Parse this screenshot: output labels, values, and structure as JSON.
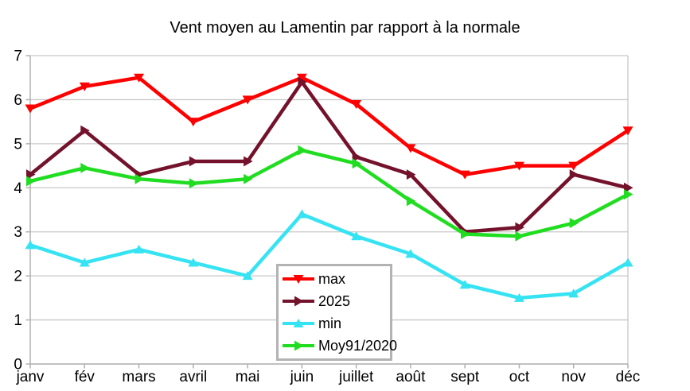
{
  "chart_data": {
    "type": "line",
    "title": "Vent moyen au Lamentin par rapport à la normale",
    "categories": [
      "janv",
      "fév",
      "mars",
      "avril",
      "mai",
      "juin",
      "juillet",
      "août",
      "sept",
      "oct",
      "nov",
      "déc"
    ],
    "series": [
      {
        "name": "max",
        "color": "#ff0000",
        "marker": "triangle-down",
        "values": [
          5.8,
          6.3,
          6.5,
          5.5,
          6.0,
          6.5,
          5.9,
          4.9,
          4.3,
          4.5,
          4.5,
          5.3
        ]
      },
      {
        "name": "2025",
        "color": "#74122c",
        "marker": "triangle-right",
        "values": [
          4.3,
          5.3,
          4.3,
          4.6,
          4.6,
          6.4,
          4.7,
          4.3,
          3.0,
          3.1,
          4.3,
          4.0
        ]
      },
      {
        "name": "min",
        "color": "#35e3f2",
        "marker": "triangle-up",
        "values": [
          2.7,
          2.3,
          2.6,
          2.3,
          2.0,
          3.4,
          2.9,
          2.5,
          1.8,
          1.5,
          1.6,
          2.3
        ]
      },
      {
        "name": "Moy91/2020",
        "color": "#21dd21",
        "marker": "triangle-right",
        "values": [
          4.15,
          4.45,
          4.2,
          4.1,
          4.2,
          4.85,
          4.55,
          3.7,
          2.95,
          2.9,
          3.2,
          3.85
        ]
      }
    ],
    "ylim": [
      0,
      7
    ],
    "y_ticks": [
      0,
      1,
      2,
      3,
      4,
      5,
      6,
      7
    ],
    "grid": "horizontal",
    "legend_position": "inside-bottom-center",
    "legend_entries": [
      "max",
      "2025",
      "min",
      "Moy91/2020"
    ],
    "colors": {
      "grid": "#c8c8c8",
      "axis": "#b0b0b0",
      "legend_border": "#b3b3b3",
      "background": "#ffffff",
      "text": "#000000"
    }
  }
}
